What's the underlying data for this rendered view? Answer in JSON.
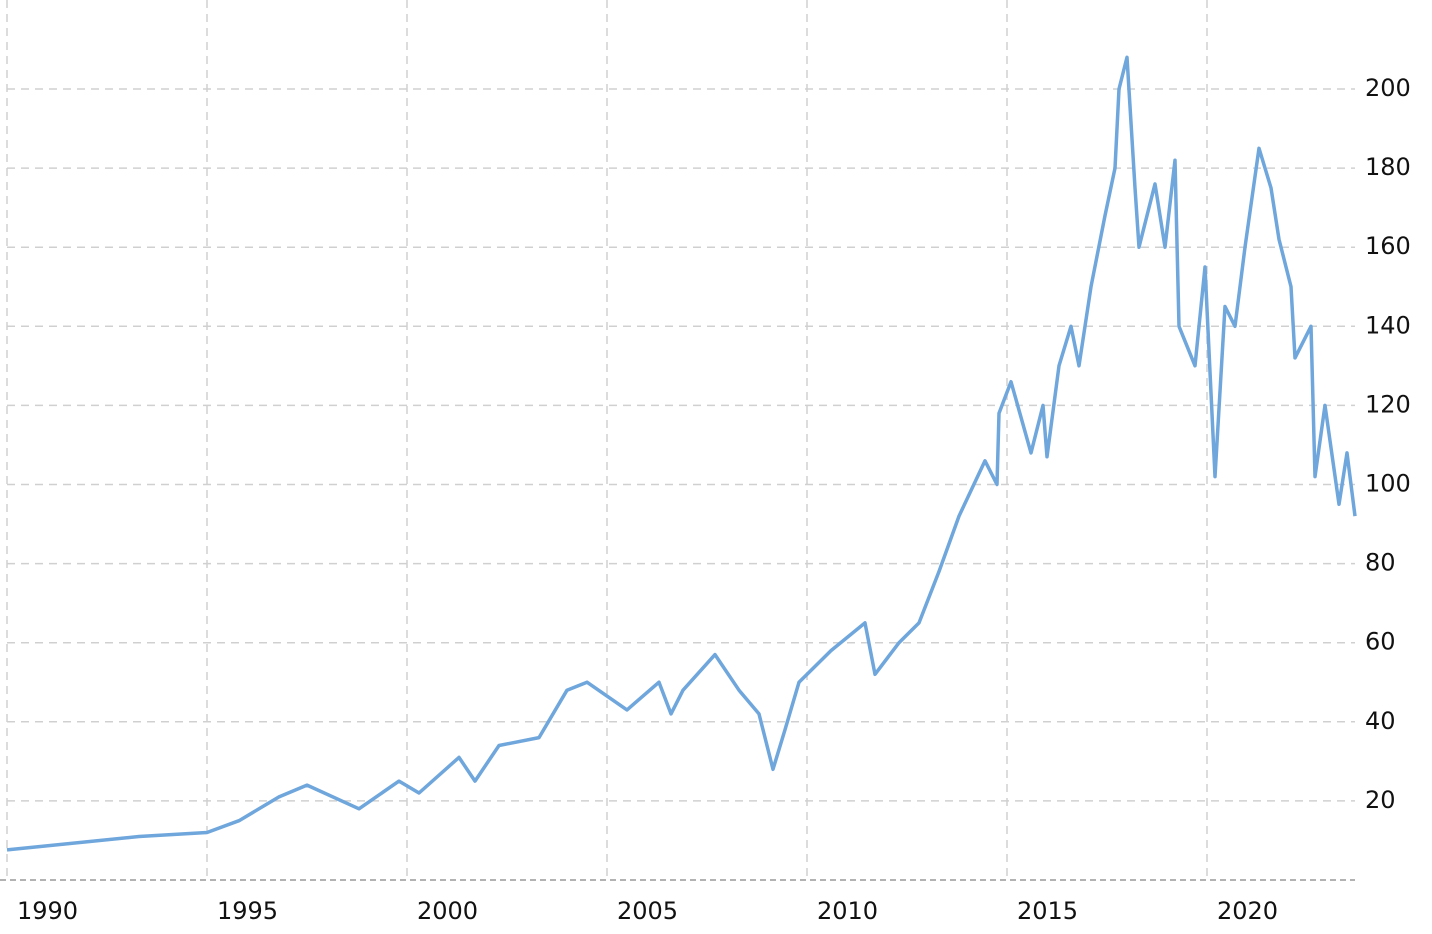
{
  "chart_data": {
    "type": "line",
    "x": [
      1990.0,
      1993.3,
      1995.0,
      1995.8,
      1996.8,
      1997.5,
      1998.8,
      1999.8,
      2000.3,
      2001.3,
      2001.7,
      2002.3,
      2003.3,
      2004.0,
      2004.5,
      2005.5,
      2006.3,
      2006.6,
      2006.9,
      2007.7,
      2008.3,
      2008.8,
      2009.15,
      2009.45,
      2009.8,
      2010.6,
      2011.45,
      2011.7,
      2012.3,
      2012.8,
      2013.3,
      2013.8,
      2014.45,
      2014.75,
      2014.8,
      2015.1,
      2015.6,
      2015.9,
      2016.0,
      2016.3,
      2016.6,
      2016.8,
      2017.1,
      2017.45,
      2017.7,
      2017.8,
      2018.0,
      2018.2,
      2018.3,
      2018.7,
      2018.95,
      2019.2,
      2019.3,
      2019.7,
      2019.95,
      2020.2,
      2020.45,
      2020.7,
      2020.95,
      2021.3,
      2021.6,
      2021.8,
      2022.1,
      2022.2,
      2022.6,
      2022.7,
      2022.95,
      2023.3,
      2023.5,
      2023.7
    ],
    "series": [
      {
        "color": "#6fa6dc",
        "values": [
          7.6,
          11,
          12,
          15,
          21,
          24,
          18,
          25,
          22,
          31,
          25,
          34,
          36,
          48,
          50,
          43,
          50,
          42,
          48,
          57,
          48,
          42,
          28,
          38,
          50,
          58,
          65,
          52,
          60,
          65,
          78,
          92,
          106,
          100,
          118,
          126,
          108,
          120,
          107,
          130,
          140,
          130,
          150,
          168,
          180,
          200,
          208,
          175,
          160,
          176,
          160,
          182,
          140,
          130,
          155,
          102,
          145,
          140,
          160,
          185,
          175,
          162,
          150,
          132,
          140,
          102,
          120,
          95,
          108,
          92
        ]
      }
    ],
    "xlim": [
      1990,
      2023.7
    ],
    "xticks": [
      1990,
      1995,
      2000,
      2005,
      2010,
      2015,
      2020
    ],
    "ylim": [
      0,
      222.5
    ],
    "yticks": [
      20,
      40,
      60,
      80,
      100,
      120,
      140,
      160,
      180,
      200
    ],
    "grid": true
  }
}
